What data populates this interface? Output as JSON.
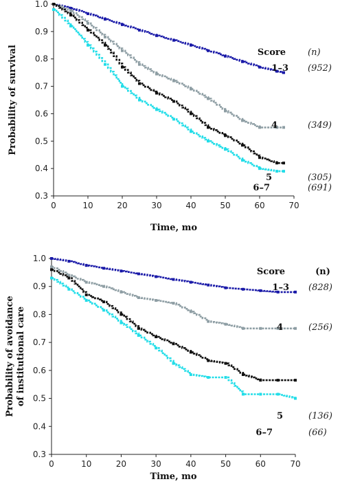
{
  "chart_data": [
    {
      "type": "line",
      "step": true,
      "xlabel": "Time, mo",
      "ylabel": "Probability of survival",
      "xlim": [
        0,
        70
      ],
      "ylim": [
        0.3,
        1.0
      ],
      "xticks": [
        "0",
        "10",
        "20",
        "30",
        "40",
        "50",
        "60",
        "70"
      ],
      "yticks": [
        "0.3",
        "0.4",
        "0.5",
        "0.6",
        "0.7",
        "0.8",
        "0.9",
        "1.0"
      ],
      "legend_header": {
        "score": "Score",
        "n": "(n)"
      },
      "series": [
        {
          "name": "1–3",
          "n": "(952)",
          "color": "#1a1aa8",
          "x": [
            0,
            5,
            10,
            15,
            20,
            25,
            30,
            35,
            40,
            45,
            50,
            55,
            60,
            65,
            67
          ],
          "y": [
            1.0,
            0.985,
            0.965,
            0.945,
            0.925,
            0.905,
            0.885,
            0.868,
            0.85,
            0.83,
            0.81,
            0.79,
            0.77,
            0.755,
            0.75
          ]
        },
        {
          "name": "4",
          "n": "(349)",
          "color": "#8e9ea4",
          "x": [
            0,
            5,
            10,
            15,
            20,
            25,
            30,
            35,
            40,
            45,
            50,
            55,
            60,
            65,
            67
          ],
          "y": [
            1.0,
            0.975,
            0.93,
            0.88,
            0.83,
            0.78,
            0.745,
            0.72,
            0.69,
            0.655,
            0.61,
            0.575,
            0.55,
            0.55,
            0.55
          ]
        },
        {
          "name": "5",
          "n": "(305)",
          "color": "#111111",
          "x": [
            0,
            5,
            10,
            15,
            20,
            25,
            30,
            35,
            40,
            45,
            50,
            55,
            60,
            65,
            67
          ],
          "y": [
            1.0,
            0.96,
            0.905,
            0.85,
            0.77,
            0.71,
            0.675,
            0.645,
            0.6,
            0.55,
            0.52,
            0.485,
            0.44,
            0.42,
            0.42
          ]
        },
        {
          "name": "6–7",
          "n": "(691)",
          "color": "#22dde8",
          "x": [
            0,
            5,
            10,
            15,
            20,
            25,
            30,
            35,
            40,
            45,
            50,
            55,
            60,
            65,
            67
          ],
          "y": [
            0.98,
            0.92,
            0.85,
            0.78,
            0.7,
            0.65,
            0.615,
            0.58,
            0.535,
            0.5,
            0.47,
            0.43,
            0.4,
            0.39,
            0.39
          ]
        }
      ]
    },
    {
      "type": "line",
      "step": true,
      "xlabel": "Time, mo",
      "ylabel_lines": [
        "Probability of avoidance",
        "of institutional care"
      ],
      "xlim": [
        0,
        70
      ],
      "ylim": [
        0.3,
        1.0
      ],
      "xticks": [
        "0",
        "10",
        "20",
        "30",
        "40",
        "50",
        "60",
        "70"
      ],
      "yticks": [
        "0.3",
        "0.4",
        "0.5",
        "0.6",
        "0.7",
        "0.8",
        "0.9",
        "1.0"
      ],
      "legend_header": {
        "score": "Score",
        "n": "(n)"
      },
      "series": [
        {
          "name": "1–3",
          "n": "(828)",
          "color": "#1a1aa8",
          "x": [
            0,
            5,
            10,
            15,
            20,
            25,
            30,
            35,
            40,
            45,
            50,
            55,
            60,
            65,
            70
          ],
          "y": [
            1.0,
            0.99,
            0.975,
            0.965,
            0.955,
            0.945,
            0.935,
            0.925,
            0.915,
            0.905,
            0.895,
            0.89,
            0.885,
            0.88,
            0.88
          ]
        },
        {
          "name": "4",
          "n": "(256)",
          "color": "#8e9ea4",
          "x": [
            0,
            5,
            10,
            15,
            20,
            25,
            30,
            35,
            40,
            45,
            50,
            55,
            60,
            65,
            70
          ],
          "y": [
            0.97,
            0.94,
            0.915,
            0.9,
            0.88,
            0.86,
            0.85,
            0.84,
            0.81,
            0.775,
            0.765,
            0.75,
            0.75,
            0.75,
            0.75
          ]
        },
        {
          "name": "5",
          "n": "(136)",
          "color": "#111111",
          "x": [
            0,
            5,
            10,
            15,
            20,
            25,
            30,
            35,
            40,
            45,
            50,
            55,
            60,
            65,
            70
          ],
          "y": [
            0.96,
            0.93,
            0.87,
            0.845,
            0.8,
            0.75,
            0.72,
            0.695,
            0.665,
            0.635,
            0.625,
            0.585,
            0.565,
            0.565,
            0.565
          ]
        },
        {
          "name": "6–7",
          "n": "(66)",
          "color": "#22dde8",
          "x": [
            0,
            5,
            10,
            15,
            20,
            25,
            30,
            35,
            40,
            45,
            50,
            55,
            60,
            65,
            70
          ],
          "y": [
            0.93,
            0.89,
            0.85,
            0.815,
            0.77,
            0.725,
            0.68,
            0.625,
            0.585,
            0.575,
            0.575,
            0.515,
            0.515,
            0.515,
            0.5
          ]
        }
      ]
    }
  ]
}
